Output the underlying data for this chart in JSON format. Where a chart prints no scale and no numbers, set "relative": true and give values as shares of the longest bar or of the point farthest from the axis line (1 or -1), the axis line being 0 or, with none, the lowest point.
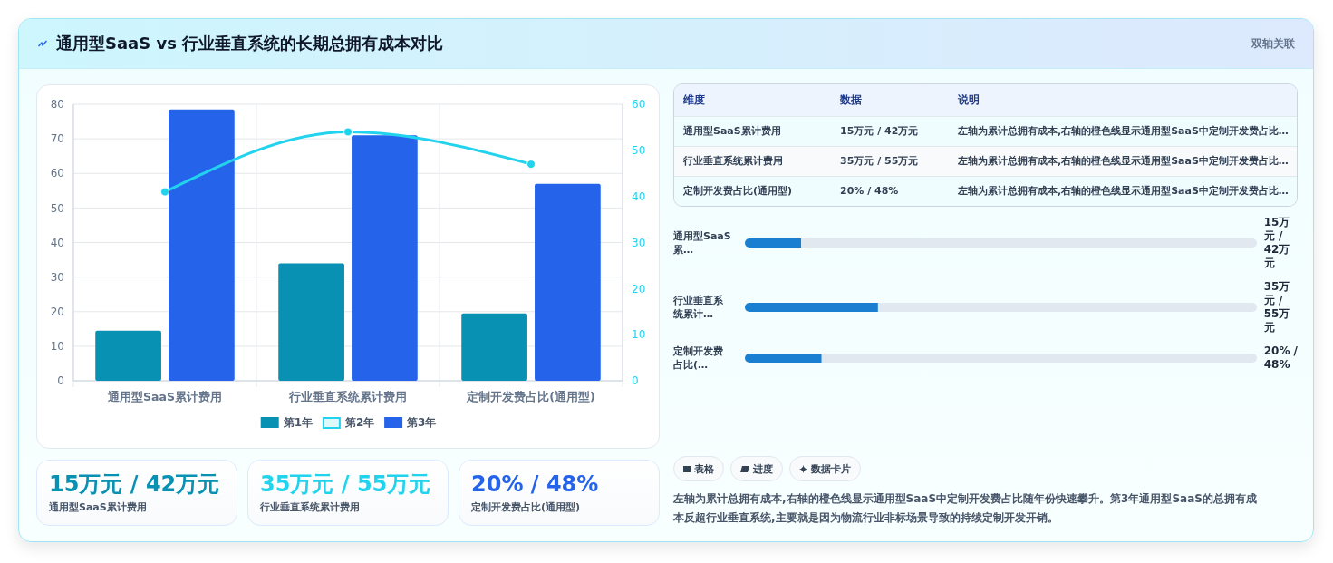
{
  "chart_data": [
    {
      "type": "other",
      "title": "通用型SaaS vs 行业垂直系统的长期总拥有成本对比",
      "subtitle": "双轴关联"
    },
    {
      "type": "bar",
      "categories": [
        "通用型SaaS累计费用",
        "行业垂直系统累计费用",
        "定制开发费占比(通用型)"
      ],
      "series": [
        {
          "name": "第1年",
          "color": "#0891b2",
          "values": [
            14.5,
            34,
            19.5
          ]
        },
        {
          "name": "第2年",
          "type": "line",
          "axis": "y2",
          "color": "#22d3ee",
          "values": [
            41,
            54,
            47
          ]
        },
        {
          "name": "第3年",
          "color": "#2563eb",
          "values": [
            78.5,
            71,
            57
          ]
        }
      ],
      "ylim": [
        0,
        80
      ],
      "yticks": [
        0,
        10,
        20,
        30,
        40,
        50,
        60,
        70,
        80
      ],
      "y2lim": [
        0,
        60
      ],
      "y2ticks": [
        0,
        10,
        20,
        30,
        40,
        50,
        60
      ],
      "grid": true,
      "legend": "bottom",
      "marker": "circle"
    },
    {
      "type": "other",
      "categories": [
        "维度",
        "数据",
        "说明"
      ],
      "cell_labels": [
        [
          "通用型SaaS累计费用",
          "15万元 / 42万元",
          "左轴为累计总拥有成本,右轴的橙色线显示通用型SaaS中定制开发费占比…"
        ],
        [
          "行业垂直系统累计费用",
          "35万元 / 55万元",
          "左轴为累计总拥有成本,右轴的橙色线显示通用型SaaS中定制开发费占比…"
        ],
        [
          "定制开发费占比(通用型)",
          "20% / 48%",
          "左轴为累计总拥有成本,右轴的橙色线显示通用型SaaS中定制开发费占比…"
        ]
      ]
    },
    {
      "type": "bar",
      "orientation": "horizontal",
      "stacked": true,
      "relative": true,
      "categories": [
        "通用型SaaS累…",
        "行业垂直系统累计…",
        "定制开发费占比(…"
      ],
      "series": [
        {
          "color": "#1a7fd0",
          "values": [
            0.11,
            0.26,
            0.15
          ]
        },
        {
          "color": "#e2e8f0",
          "values": [
            0.89,
            0.74,
            0.85
          ]
        }
      ],
      "value_labels": [
        "15万元 / 42万元",
        "35万元 / 55万元",
        "20% / 48%"
      ]
    },
    {
      "type": "other",
      "categories": [
        "通用型SaaS累计费用",
        "行业垂直系统累计费用",
        "定制开发费占比(通用型)"
      ],
      "value_labels": [
        "15万元 / 42万元",
        "35万元 / 55万元",
        "20% / 48%"
      ]
    },
    {
      "type": "other",
      "categories": [
        "表格",
        "进度",
        "数据卡片"
      ],
      "annotations": [
        "左轴为累计总拥有成本,右轴的橙色线显示通用型SaaS中定制开发费占比随年份快速攀升。第3年通用型SaaS的总拥有成本反超行业垂直系统,主要就是因为物流行业非标场景导致的持续定制开发开销。"
      ]
    }
  ]
}
